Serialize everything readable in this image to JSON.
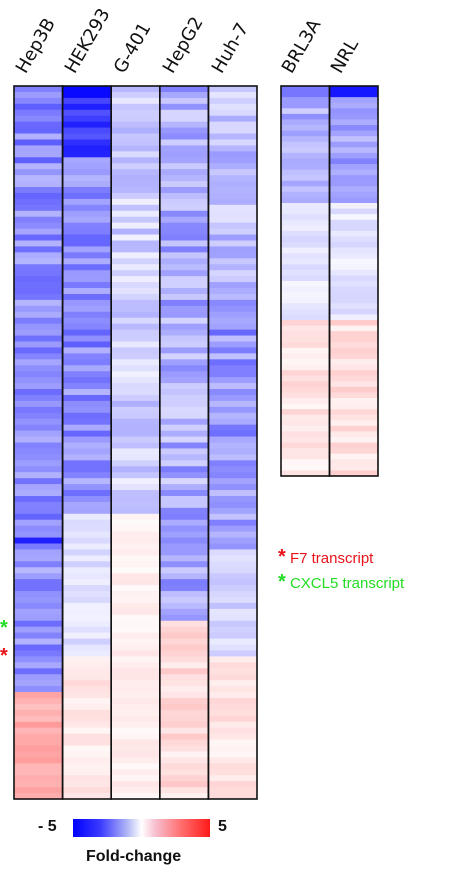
{
  "chart_data": [
    {
      "type": "heatmap",
      "panel": "main",
      "columns": [
        "Hep3B",
        "HEK293",
        "G-401",
        "HepG2",
        "Huh-7"
      ],
      "n_rows": 120,
      "value_range": [
        -5,
        5
      ],
      "note_values": "fold-change estimates per gene row, read from color"
    },
    {
      "type": "heatmap",
      "panel": "control",
      "columns": [
        "BRL3A",
        "NRL"
      ],
      "n_rows": 70,
      "value_range": [
        -5,
        5
      ]
    }
  ],
  "annotations": [
    {
      "symbol": "*",
      "label": "F7 transcript",
      "color": "#e8141a"
    },
    {
      "symbol": "*",
      "label": "CXCL5 transcript",
      "color": "#22dd22"
    }
  ],
  "colorbar": {
    "min_label": "- 5",
    "max_label": "5",
    "title": "Fold-change",
    "low_color": "#0000ff",
    "mid_color": "#ffffff",
    "high_color": "#ff1a1a"
  }
}
